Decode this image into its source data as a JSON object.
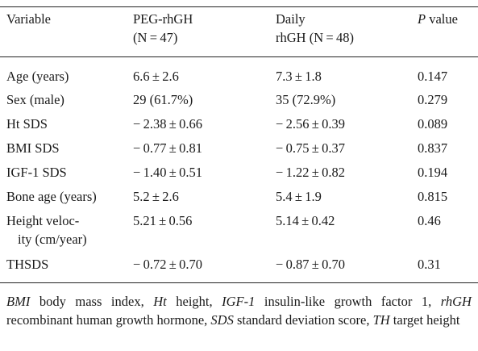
{
  "table": {
    "headers": {
      "variable": "Variable",
      "peg_line1": "PEG-rhGH",
      "peg_line2": "(N = 47)",
      "daily_line1": "Daily",
      "daily_line2": "rhGH (N = 48)",
      "p_italic": "P",
      "p_rest": " value"
    },
    "rows": [
      {
        "variable": "Age (years)",
        "peg": "6.6 ± 2.6",
        "daily": "7.3 ± 1.8",
        "p": "0.147"
      },
      {
        "variable": "Sex (male)",
        "peg": "29 (61.7%)",
        "daily": "35 (72.9%)",
        "p": "0.279"
      },
      {
        "variable": "Ht SDS",
        "peg": "− 2.38 ± 0.66",
        "daily": "− 2.56 ± 0.39",
        "p": "0.089"
      },
      {
        "variable": "BMI SDS",
        "peg": "− 0.77 ± 0.81",
        "daily": "− 0.75 ± 0.37",
        "p": "0.837"
      },
      {
        "variable": "IGF-1 SDS",
        "peg": "− 1.40 ± 0.51",
        "daily": "− 1.22 ± 0.82",
        "p": "0.194"
      },
      {
        "variable": "Bone age (years)",
        "peg": "5.2 ± 2.6",
        "daily": "5.4 ± 1.9",
        "p": "0.815"
      },
      {
        "variable": "Height veloc-",
        "variable_line2": "ity (cm/year)",
        "peg": "5.21 ± 0.56",
        "daily": "5.14 ± 0.42",
        "p": "0.46"
      },
      {
        "variable": "THSDS",
        "peg": "− 0.72 ± 0.70",
        "daily": "− 0.87 ± 0.70",
        "p": "0.31"
      }
    ]
  },
  "footnote": {
    "bmi_abbr": "BMI",
    "bmi_text": " body mass index, ",
    "ht_abbr": "Ht",
    "ht_text": " height, ",
    "igf_abbr": "IGF-1",
    "igf_text": " insulin-like growth factor 1, ",
    "rhgh_abbr": "rhGH",
    "rhgh_text": " recombinant human growth hormone, ",
    "sds_abbr": "SDS",
    "sds_text": " standard deviation score, ",
    "th_abbr": "TH",
    "th_text": " target height"
  }
}
